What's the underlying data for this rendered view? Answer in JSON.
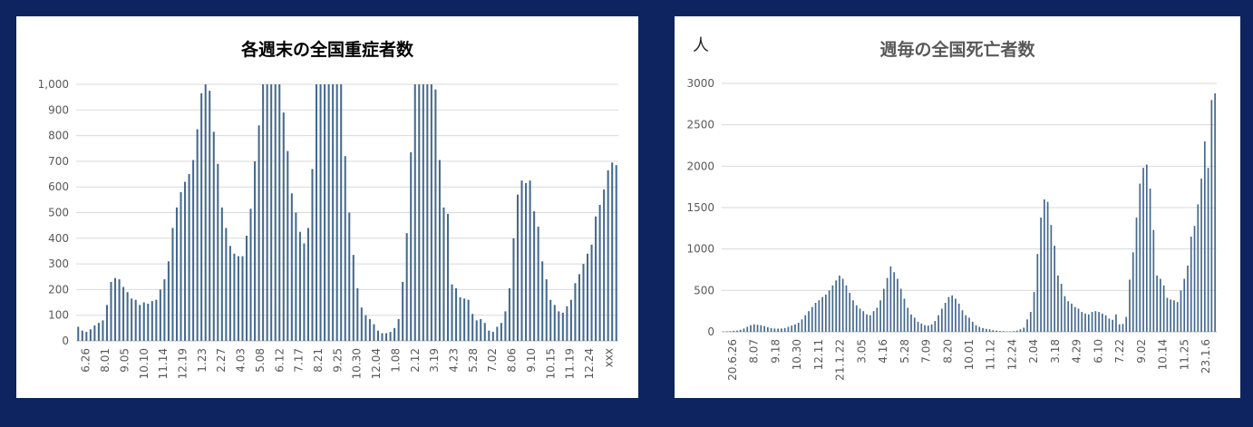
{
  "colors": {
    "background": "#0d2460",
    "panel": "#ffffff",
    "bar": "#44698f"
  },
  "chart_data": [
    {
      "type": "bar",
      "title": "各週末の全国重症者数",
      "ylim": [
        0,
        1000
      ],
      "yticks": [
        "0",
        "100",
        "200",
        "300",
        "400",
        "500",
        "600",
        "700",
        "800",
        "900",
        "1,000"
      ],
      "xticklabels": [
        "6.26",
        "8.01",
        "9.05",
        "10.10",
        "11.14",
        "12.19",
        "1.23",
        "2.27",
        "4.03",
        "5.08",
        "6.12",
        "7.17",
        "8.21",
        "9.25",
        "10.30",
        "12.04",
        "1.08",
        "2.12",
        "3.19",
        "4.23",
        "5.28",
        "7.02",
        "8.06",
        "9.10",
        "10.15",
        "11.19",
        "12.24",
        "xxx"
      ],
      "values": [
        55,
        40,
        35,
        45,
        60,
        70,
        80,
        140,
        230,
        245,
        240,
        210,
        190,
        165,
        160,
        140,
        150,
        145,
        155,
        160,
        200,
        240,
        310,
        440,
        520,
        580,
        620,
        650,
        705,
        825,
        965,
        1000,
        975,
        815,
        690,
        520,
        440,
        370,
        340,
        330,
        330,
        410,
        515,
        700,
        840,
        1000,
        1000,
        1000,
        1000,
        1000,
        890,
        740,
        575,
        500,
        425,
        380,
        440,
        670,
        1000,
        1000,
        1000,
        1000,
        1000,
        1000,
        1000,
        720,
        500,
        335,
        205,
        130,
        100,
        85,
        65,
        40,
        30,
        30,
        35,
        50,
        85,
        230,
        420,
        735,
        1000,
        1000,
        1000,
        1000,
        1000,
        980,
        705,
        520,
        495,
        220,
        205,
        170,
        165,
        160,
        105,
        80,
        85,
        70,
        40,
        35,
        55,
        70,
        115,
        205,
        400,
        570,
        625,
        615,
        625,
        505,
        445,
        310,
        240,
        160,
        140,
        115,
        110,
        135,
        160,
        225,
        260,
        300,
        340,
        375,
        485,
        530,
        590,
        665,
        695,
        685
      ]
    },
    {
      "type": "bar",
      "title": "週毎の全国死亡者数",
      "unit": "人",
      "ylim": [
        0,
        3000
      ],
      "yticks": [
        "0",
        "500",
        "1000",
        "1500",
        "2000",
        "2500",
        "3000"
      ],
      "xticklabels": [
        "20.6.26",
        "8.07",
        "9.18",
        "10.30",
        "12.11",
        "21.1.22",
        "3.05",
        "4.16",
        "5.28",
        "7.09",
        "8.20",
        "10.01",
        "11.12",
        "12.24",
        "2.04",
        "3.18",
        "4.29",
        "6.10",
        "7.22",
        "9.02",
        "10.14",
        "11.25",
        "23.1.6"
      ],
      "values": [
        3,
        5,
        8,
        12,
        15,
        25,
        40,
        60,
        80,
        90,
        85,
        80,
        70,
        55,
        45,
        40,
        38,
        40,
        45,
        60,
        75,
        90,
        110,
        150,
        200,
        250,
        300,
        350,
        380,
        420,
        450,
        500,
        560,
        620,
        680,
        640,
        560,
        470,
        380,
        320,
        280,
        250,
        210,
        200,
        250,
        290,
        380,
        520,
        650,
        790,
        720,
        640,
        520,
        400,
        290,
        210,
        170,
        120,
        100,
        80,
        75,
        90,
        130,
        200,
        280,
        350,
        420,
        440,
        400,
        340,
        260,
        200,
        170,
        120,
        80,
        60,
        45,
        35,
        30,
        20,
        15,
        10,
        8,
        5,
        5,
        8,
        15,
        30,
        50,
        150,
        240,
        480,
        940,
        1380,
        1600,
        1570,
        1290,
        1040,
        680,
        580,
        430,
        370,
        340,
        300,
        280,
        240,
        220,
        210,
        240,
        250,
        240,
        220,
        200,
        160,
        145,
        210,
        90,
        95,
        180,
        630,
        960,
        1380,
        1790,
        1980,
        2020,
        1730,
        1230,
        680,
        640,
        560,
        410,
        390,
        380,
        360,
        500,
        640,
        800,
        1150,
        1280,
        1540,
        1850,
        2300,
        1980,
        2800,
        2880
      ]
    }
  ]
}
